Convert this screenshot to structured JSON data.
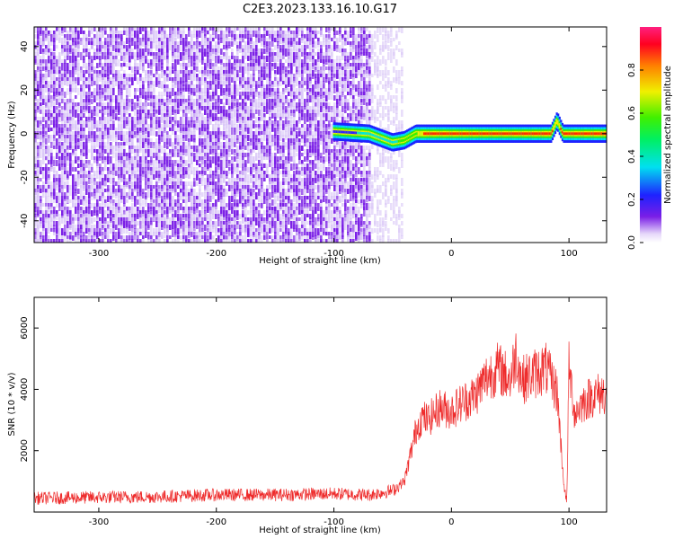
{
  "title": "C2E3.2023.133.16.10.G17",
  "colors": {
    "snr_line": "#ee2b2b",
    "spec_low": "#7a1ee6",
    "spec_pale": "#d9c6f7"
  },
  "chart_data": [
    {
      "type": "heatmap",
      "xlabel": "Height of straight line (km)",
      "ylabel": "Frequency (Hz)",
      "xlim": [
        -355,
        132
      ],
      "ylim": [
        -50,
        49
      ],
      "x_ticks": [
        -300,
        -200,
        -100,
        0,
        100
      ],
      "y_ticks": [
        -40,
        -20,
        0,
        20,
        40
      ],
      "colorbar": {
        "label": "Normalized spectral amplitude",
        "range": [
          0.0,
          1.0
        ],
        "ticks": [
          0.0,
          0.2,
          0.4,
          0.6,
          0.8
        ]
      },
      "noise_region_x": [
        -355,
        -50
      ],
      "signal_track": {
        "x": [
          -100,
          -70,
          -60,
          -50,
          -40,
          -30,
          -20,
          0,
          50,
          85,
          90,
          95,
          132
        ],
        "freq_hz": [
          1,
          0,
          -2,
          -4,
          -3,
          0,
          0,
          0,
          0,
          0,
          6,
          0,
          0
        ],
        "amplitude": [
          0.3,
          0.45,
          0.5,
          0.45,
          0.55,
          0.6,
          0.9,
          0.85,
          0.85,
          0.85,
          0.7,
          0.9,
          0.85
        ]
      }
    },
    {
      "type": "line",
      "xlabel": "Height of straight line (km)",
      "ylabel": "SNR (10 * v/v)",
      "xlim": [
        -355,
        132
      ],
      "ylim": [
        0,
        7000
      ],
      "x_ticks": [
        -300,
        -200,
        -100,
        0,
        100
      ],
      "y_ticks": [
        2000,
        4000,
        6000
      ],
      "series": [
        {
          "x": [
            -355,
            -300,
            -250,
            -200,
            -150,
            -100,
            -70,
            -50,
            -40,
            -30,
            -25,
            -20,
            -10,
            0,
            10,
            20,
            30,
            40,
            50,
            55,
            60,
            70,
            80,
            90,
            95,
            98,
            100,
            105,
            110,
            120,
            132
          ],
          "values": [
            450,
            480,
            500,
            560,
            560,
            600,
            560,
            700,
            1000,
            2700,
            3100,
            3000,
            3400,
            3300,
            3600,
            3800,
            4400,
            4700,
            4300,
            5200,
            4300,
            4500,
            4700,
            3900,
            1200,
            200,
            4700,
            3200,
            3500,
            3800,
            3900
          ]
        }
      ]
    }
  ]
}
